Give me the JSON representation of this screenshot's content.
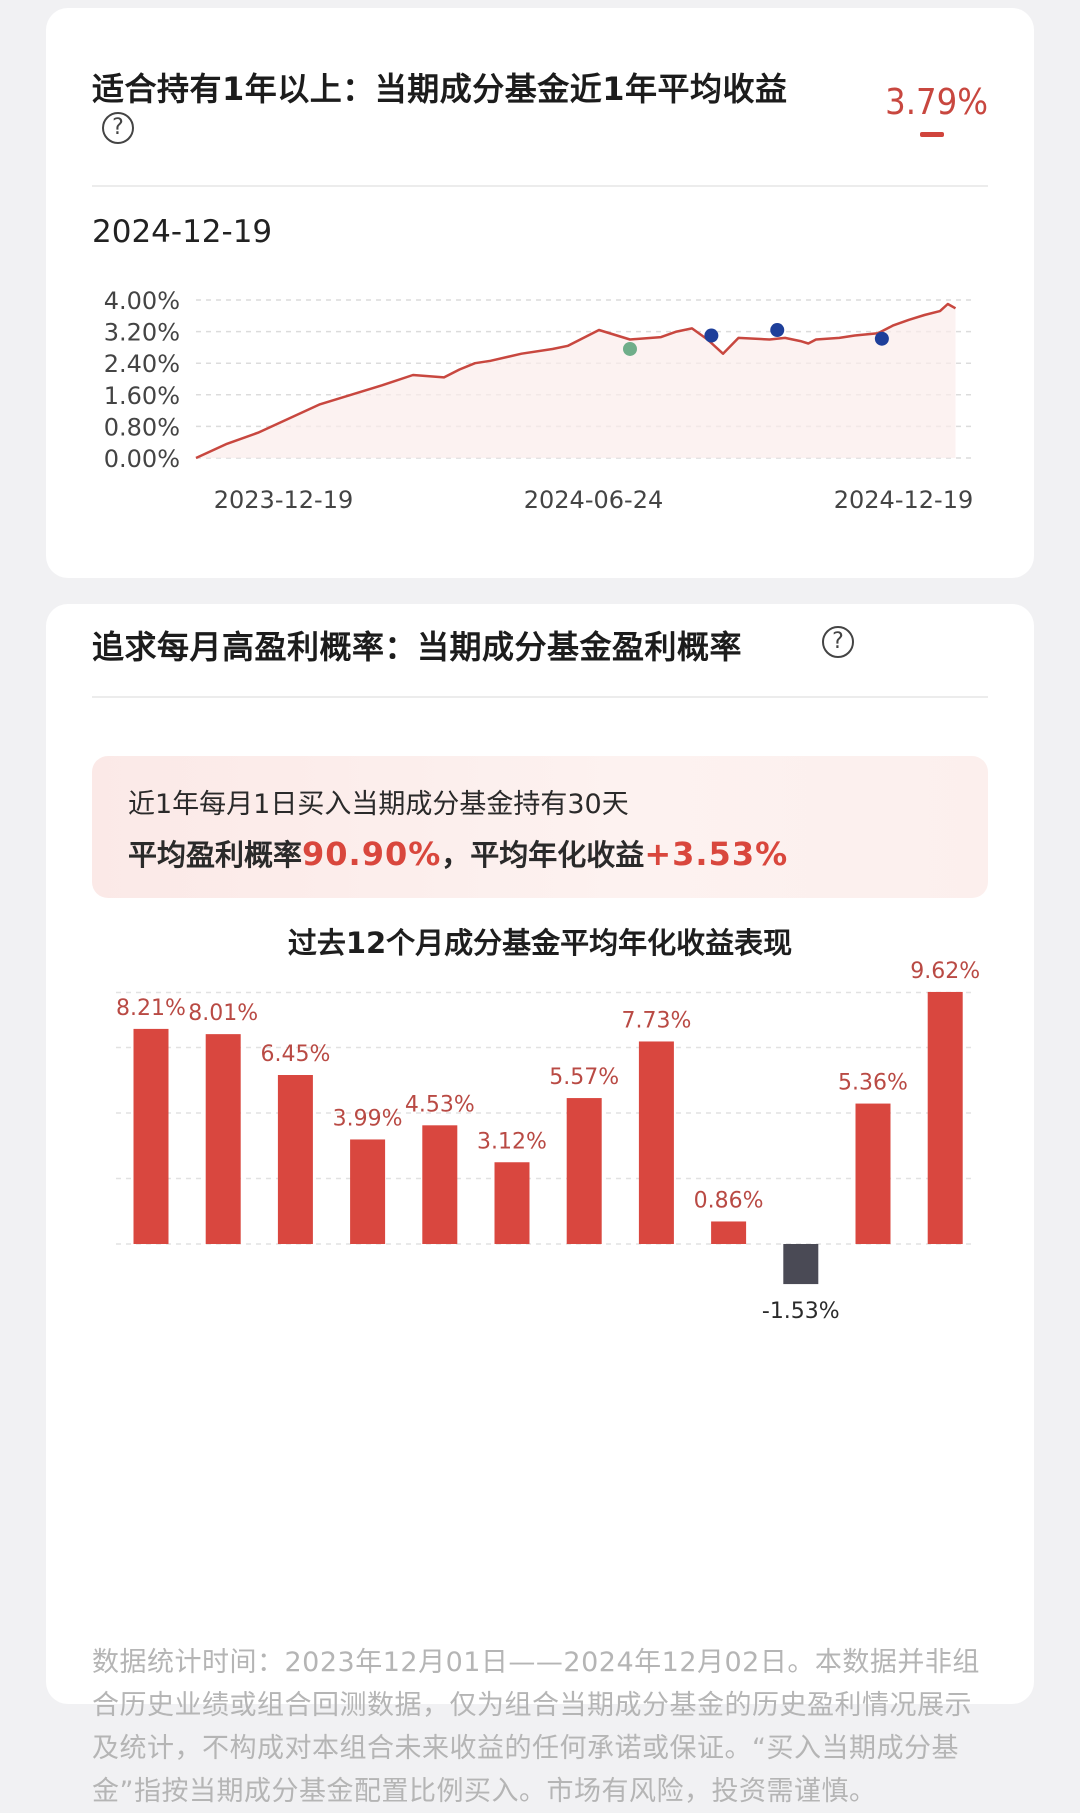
{
  "section1": {
    "title": "适合持有1年以上：当期成分基金近1年平均收益",
    "help_icon": "question-circle-icon",
    "value": "3.79%",
    "date": "2024-12-19"
  },
  "line_chart": {
    "type": "line",
    "ytick_labels": [
      "4.00%",
      "3.20%",
      "2.40%",
      "1.60%",
      "0.80%",
      "0.00%"
    ],
    "ytick_values": [
      4.0,
      3.2,
      2.4,
      1.6,
      0.8,
      0.0
    ],
    "ylim": [
      0,
      4.0
    ],
    "xtick_labels": [
      "2023-12-19",
      "2024-06-24",
      "2024-12-19"
    ],
    "grid": true,
    "line_color": "#c8473f",
    "x": [
      0,
      0.04,
      0.08,
      0.12,
      0.16,
      0.2,
      0.24,
      0.28,
      0.32,
      0.34,
      0.36,
      0.38,
      0.42,
      0.46,
      0.48,
      0.52,
      0.56,
      0.6,
      0.62,
      0.64,
      0.66,
      0.68,
      0.7,
      0.74,
      0.76,
      0.78,
      0.79,
      0.8,
      0.83,
      0.85,
      0.88,
      0.9,
      0.92,
      0.94,
      0.96,
      0.97,
      0.98
    ],
    "y": [
      0.0,
      0.36,
      0.64,
      1.0,
      1.36,
      1.6,
      1.84,
      2.1,
      2.04,
      2.24,
      2.4,
      2.46,
      2.64,
      2.76,
      2.84,
      3.24,
      3.0,
      3.06,
      3.2,
      3.28,
      3.0,
      2.64,
      3.04,
      3.0,
      3.04,
      2.96,
      2.9,
      3.0,
      3.04,
      3.1,
      3.16,
      3.36,
      3.5,
      3.62,
      3.72,
      3.9,
      3.79
    ],
    "markers": [
      {
        "x": 0.56,
        "y": 2.76,
        "color": "#6fae8a"
      },
      {
        "x": 0.665,
        "y": 3.1,
        "color": "#1e3f9a"
      },
      {
        "x": 0.75,
        "y": 3.24,
        "color": "#1e3f9a"
      },
      {
        "x": 0.885,
        "y": 3.02,
        "color": "#1e3f9a"
      }
    ]
  },
  "section2": {
    "title": "追求每月高盈利概率：当期成分基金盈利概率",
    "help_icon": "question-circle-icon",
    "stat_line1": "近1年每月1日买入当期成分基金持有30天",
    "stat_prefix1": "平均盈利概率",
    "stat_value1": "90.90%",
    "stat_prefix2": "，平均年化收益",
    "stat_value2": "+3.53%",
    "subtitle": "过去12个月成分基金平均年化收益表现",
    "disclaimer": "数据统计时间：2023年12月01日——2024年12月02日。本数据并非组合历史业绩或组合回测数据，仅为组合当期成分基金的历史盈利情况展示及统计，不构成对本组合未来收益的任何承诺或保证。“买入当期成分基金”指按当期成分基金配置比例买入。市场有风险，投资需谨慎。"
  },
  "chart_data": [
    {
      "type": "line",
      "title": "",
      "ylabel": "",
      "ylim": [
        0,
        4.0
      ],
      "yticks": [
        "0.00%",
        "0.80%",
        "1.60%",
        "2.40%",
        "3.20%",
        "4.00%"
      ],
      "xticks": [
        "2023-12-19",
        "2024-06-24",
        "2024-12-19"
      ],
      "final_value": 3.79
    },
    {
      "type": "bar",
      "title": "过去12个月成分基金平均年化收益表现",
      "values": [
        8.21,
        8.01,
        6.45,
        3.99,
        4.53,
        3.12,
        5.57,
        7.73,
        0.86,
        -1.53,
        5.36,
        9.62
      ],
      "labels": [
        "8.21%",
        "8.01%",
        "6.45%",
        "3.99%",
        "4.53%",
        "3.12%",
        "5.57%",
        "7.73%",
        "0.86%",
        "-1.53%",
        "5.36%",
        "9.62%"
      ],
      "positive_color": "#d9473f",
      "negative_color": "#4a4a55",
      "grid": true
    }
  ]
}
